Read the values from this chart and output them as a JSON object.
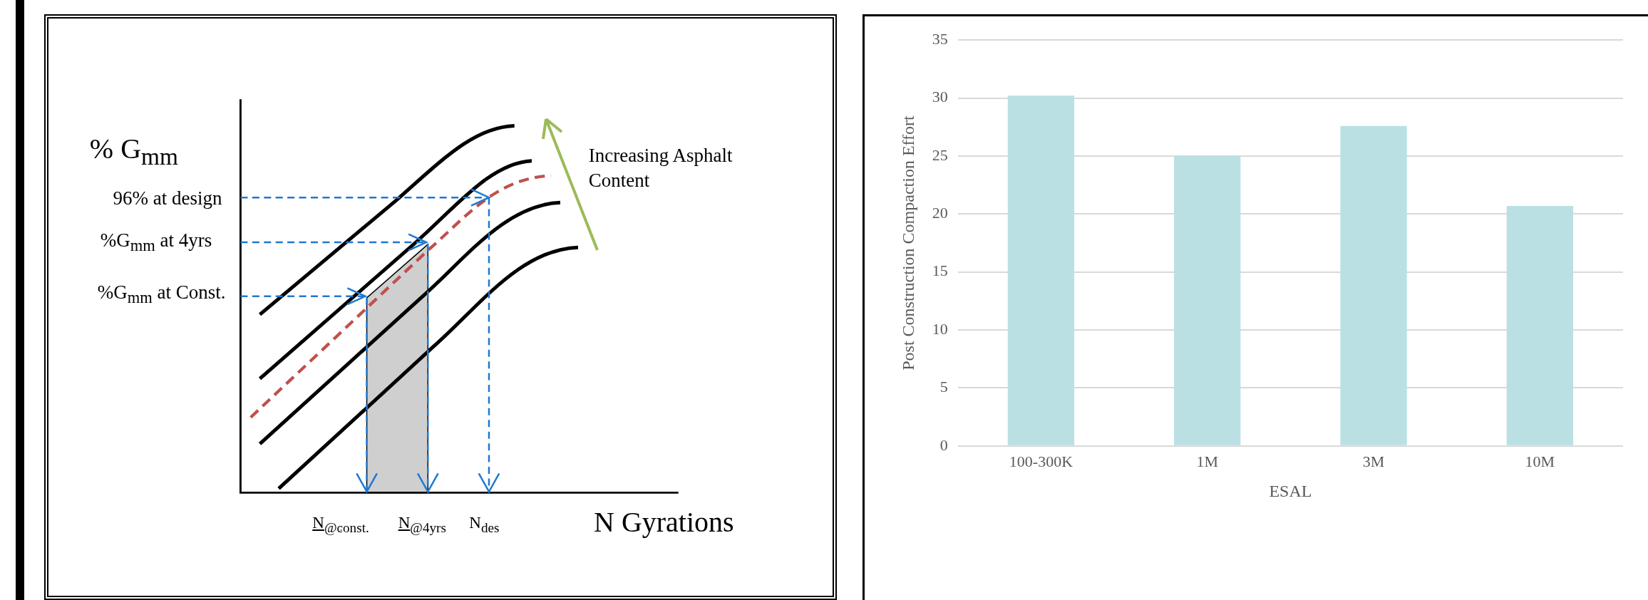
{
  "chart_data": [
    {
      "type": "other",
      "ylabel": "% G$_{mm}$",
      "xlabel": "N Gyrations",
      "annotations": [
        "96% at design",
        "%G$_{mm}$ at 4yrs",
        "%G$_{mm}$ at Const.",
        "N$_{@const.}$",
        "N$_{@4yrs}$",
        "N$_{des}$",
        "Increasing Asphalt Content"
      ]
    },
    {
      "type": "bar",
      "xlabel": "ESAL",
      "ylabel": "Post Construction Compaction Effort",
      "categories": [
        "100-300K",
        "1M",
        "3M",
        "10M"
      ],
      "values": [
        30.2,
        25.0,
        27.6,
        20.7
      ],
      "color": "#bae0e3",
      "ylim": [
        0,
        35
      ],
      "yticks": [
        0,
        5,
        10,
        15,
        20,
        25,
        30,
        35
      ],
      "grid": "y",
      "legend": false
    }
  ]
}
